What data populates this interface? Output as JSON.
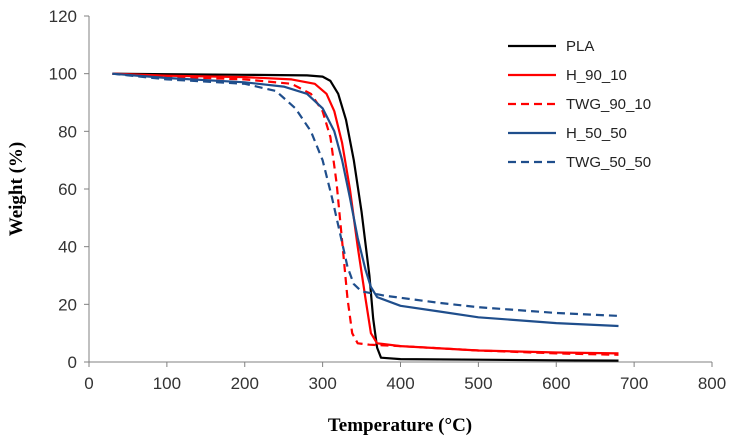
{
  "chart_data": {
    "type": "line",
    "title": "",
    "xlabel": "Temperature (°C)",
    "ylabel": "Weight (%)",
    "xlim": [
      0,
      800
    ],
    "ylim": [
      0,
      120
    ],
    "xticks": [
      0,
      100,
      200,
      300,
      400,
      500,
      600,
      700,
      800
    ],
    "yticks": [
      0,
      20,
      40,
      60,
      80,
      100,
      120
    ],
    "grid": false,
    "legend_position": "top-right",
    "series": [
      {
        "name": "PLA",
        "color": "#000000",
        "dash": "solid",
        "points": [
          [
            30,
            100
          ],
          [
            100,
            99.8
          ],
          [
            200,
            99.6
          ],
          [
            280,
            99.4
          ],
          [
            300,
            99
          ],
          [
            310,
            97.5
          ],
          [
            320,
            93
          ],
          [
            330,
            84
          ],
          [
            340,
            70
          ],
          [
            350,
            52
          ],
          [
            360,
            30
          ],
          [
            365,
            15
          ],
          [
            370,
            5
          ],
          [
            375,
            1.5
          ],
          [
            400,
            1
          ],
          [
            500,
            0.8
          ],
          [
            600,
            0.6
          ],
          [
            680,
            0.5
          ]
        ]
      },
      {
        "name": "H_90_10",
        "color": "#ff0000",
        "dash": "solid",
        "points": [
          [
            30,
            100
          ],
          [
            100,
            99.3
          ],
          [
            200,
            98.8
          ],
          [
            260,
            98
          ],
          [
            290,
            96.5
          ],
          [
            305,
            93
          ],
          [
            315,
            87
          ],
          [
            325,
            76
          ],
          [
            335,
            60
          ],
          [
            345,
            40
          ],
          [
            355,
            22
          ],
          [
            362,
            10
          ],
          [
            370,
            6.5
          ],
          [
            400,
            5.5
          ],
          [
            500,
            4
          ],
          [
            600,
            3.3
          ],
          [
            680,
            3
          ]
        ]
      },
      {
        "name": "TWG_90_10",
        "color": "#ff0000",
        "dash": "dashed",
        "points": [
          [
            30,
            100
          ],
          [
            100,
            99
          ],
          [
            200,
            98
          ],
          [
            260,
            96.5
          ],
          [
            285,
            93
          ],
          [
            300,
            87
          ],
          [
            310,
            78
          ],
          [
            318,
            62
          ],
          [
            325,
            42
          ],
          [
            332,
            22
          ],
          [
            338,
            10
          ],
          [
            345,
            6.5
          ],
          [
            360,
            6
          ],
          [
            400,
            5.5
          ],
          [
            500,
            4
          ],
          [
            600,
            3
          ],
          [
            680,
            2.5
          ]
        ]
      },
      {
        "name": "H_50_50",
        "color": "#1f4e8c",
        "dash": "solid",
        "points": [
          [
            30,
            100
          ],
          [
            100,
            98.5
          ],
          [
            200,
            97
          ],
          [
            250,
            95.5
          ],
          [
            280,
            93
          ],
          [
            300,
            88
          ],
          [
            315,
            80
          ],
          [
            325,
            70
          ],
          [
            335,
            57
          ],
          [
            345,
            43
          ],
          [
            355,
            32
          ],
          [
            362,
            26
          ],
          [
            370,
            22.5
          ],
          [
            400,
            19.5
          ],
          [
            450,
            17.5
          ],
          [
            500,
            15.5
          ],
          [
            600,
            13.5
          ],
          [
            680,
            12.5
          ]
        ]
      },
      {
        "name": "TWG_50_50",
        "color": "#1f4e8c",
        "dash": "dashed",
        "points": [
          [
            30,
            100
          ],
          [
            100,
            98
          ],
          [
            200,
            96.5
          ],
          [
            240,
            94
          ],
          [
            265,
            88
          ],
          [
            285,
            80
          ],
          [
            300,
            70
          ],
          [
            312,
            57
          ],
          [
            322,
            45
          ],
          [
            332,
            33
          ],
          [
            340,
            27
          ],
          [
            350,
            24.5
          ],
          [
            380,
            23
          ],
          [
            450,
            20.5
          ],
          [
            500,
            19
          ],
          [
            600,
            17
          ],
          [
            680,
            16
          ]
        ]
      }
    ]
  }
}
